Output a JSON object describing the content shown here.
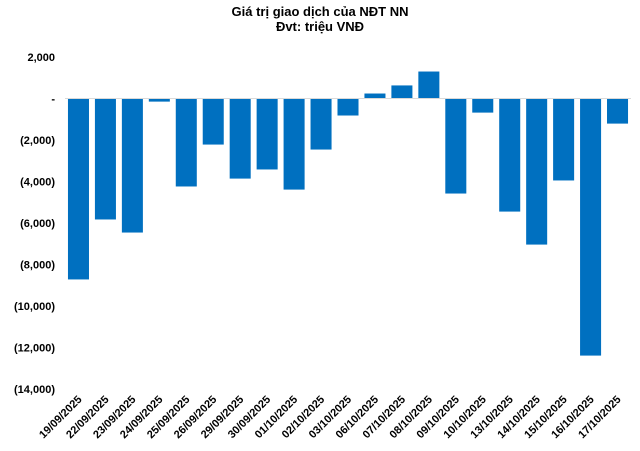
{
  "chart_data": {
    "type": "bar",
    "title": "Giá trị giao dịch của NĐT NN",
    "subtitle": "Đvt: triệu VNĐ",
    "categories": [
      "19/09/2025",
      "22/09/2025",
      "23/09/2025",
      "24/09/2025",
      "25/09/2025",
      "26/09/2025",
      "29/09/2025",
      "30/09/2025",
      "01/10/2025",
      "02/10/2025",
      "03/10/2025",
      "06/10/2025",
      "07/10/2025",
      "08/10/2025",
      "09/10/2025",
      "10/10/2025",
      "13/10/2025",
      "14/10/2025",
      "15/10/2025",
      "16/10/2025",
      "17/10/2025"
    ],
    "values": [
      -8720,
      -5830,
      -6460,
      -150,
      -4240,
      -2220,
      -3860,
      -3420,
      -4390,
      -2460,
      -820,
      240,
      630,
      1300,
      -4580,
      -680,
      -5450,
      -7040,
      -3950,
      -12390,
      -1210
    ],
    "yticks": [
      2000,
      0,
      -2000,
      -4000,
      -6000,
      -8000,
      -10000,
      -12000,
      -14000
    ],
    "ytick_labels": [
      "2,000",
      "-",
      "(2,000)",
      "(4,000)",
      "(6,000)",
      "(8,000)",
      "(10,000)",
      "(12,000)",
      "(14,000)"
    ],
    "ylim": [
      -14000,
      2000
    ],
    "grid": false,
    "bar_color": "#0070C0",
    "xlabel": "",
    "ylabel": ""
  }
}
